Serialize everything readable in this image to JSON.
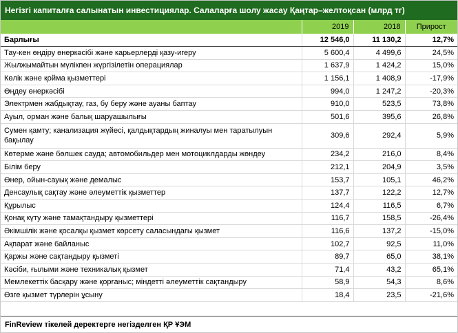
{
  "title": "Негізгі капиталға салынатын инвестициялар. Салаларға шолу жасау Қаңтар–желтоқсан  (млрд тг)",
  "header": {
    "col_2019": "2019",
    "col_2018": "2018",
    "col_change": "Прирост"
  },
  "total": {
    "label": "Барлығы",
    "v2019": "12 546,0",
    "v2018": "11 130,2",
    "change": "12,7%"
  },
  "rows": [
    {
      "label": "Тау-кен өндіру өнеркәсібі және карьерлерді қазу-игеру",
      "v2019": "5 600,4",
      "v2018": "4 499,6",
      "change": "24,5%"
    },
    {
      "label": "Жылжымайтын мүлікпен жүргізілетін операциялар",
      "v2019": "1 637,9",
      "v2018": "1 424,2",
      "change": "15,0%"
    },
    {
      "label": "Көлік және қойма қызметтері",
      "v2019": "1 156,1",
      "v2018": "1 408,9",
      "change": "-17,9%"
    },
    {
      "label": "Өңдеу өнеркәсібі",
      "v2019": "994,0",
      "v2018": "1 247,2",
      "change": "-20,3%"
    },
    {
      "label": "Электрмен жабдықтау, газ, бу беру және ауаны баптау",
      "v2019": "910,0",
      "v2018": "523,5",
      "change": "73,8%"
    },
    {
      "label": "Ауыл, орман және балық шаруашылығы",
      "v2019": "501,6",
      "v2018": "395,6",
      "change": "26,8%"
    },
    {
      "label": "Сумен қамту; канализация жүйесі, қалдықтардың жиналуы мен таратылуын бақылау",
      "v2019": "309,6",
      "v2018": "292,4",
      "change": "5,9%"
    },
    {
      "label": "Көтерме және бөлшек сауда; автомобильдер мен мотоциклдарды жөндеу",
      "v2019": "234,2",
      "v2018": "216,0",
      "change": "8,4%"
    },
    {
      "label": "Білім беру",
      "v2019": "212,1",
      "v2018": "204,9",
      "change": "3,5%"
    },
    {
      "label": "Өнер, ойын-сауық және демалыс",
      "v2019": "153,7",
      "v2018": "105,1",
      "change": "46,2%"
    },
    {
      "label": "Денсаулық сақтау және әлеуметтік қызметтер",
      "v2019": "137,7",
      "v2018": "122,2",
      "change": "12,7%"
    },
    {
      "label": "Құрылыс",
      "v2019": "124,4",
      "v2018": "116,5",
      "change": "6,7%"
    },
    {
      "label": "Қонақ күту және тамақтандыру қызметтері",
      "v2019": "116,7",
      "v2018": "158,5",
      "change": "-26,4%"
    },
    {
      "label": "Әкімшілік және қосалқы қызмет көрсету саласындағы қызмет",
      "v2019": "116,6",
      "v2018": "137,2",
      "change": "-15,0%"
    },
    {
      "label": "Ақпарат және байланыс",
      "v2019": "102,7",
      "v2018": "92,5",
      "change": "11,0%"
    },
    {
      "label": "Қаржы және сақтандыру қызметі",
      "v2019": "89,7",
      "v2018": "65,0",
      "change": "38,1%"
    },
    {
      "label": "Кәсіби, ғылыми және техникалық қызмет",
      "v2019": "71,4",
      "v2018": "43,2",
      "change": "65,1%"
    },
    {
      "label": "Мемлекеттік басқару және қорғаныс; міндетті әлеуметтік сақтандыру",
      "v2019": "58,9",
      "v2018": "54,3",
      "change": "8,6%"
    },
    {
      "label": "Өзге қызмет түрлерін ұсыну",
      "v2019": "18,4",
      "v2018": "23,5",
      "change": "-21,6%"
    }
  ],
  "footer": "FinReview тікелей деректерге негізделген ҚР ҰЭМ"
}
